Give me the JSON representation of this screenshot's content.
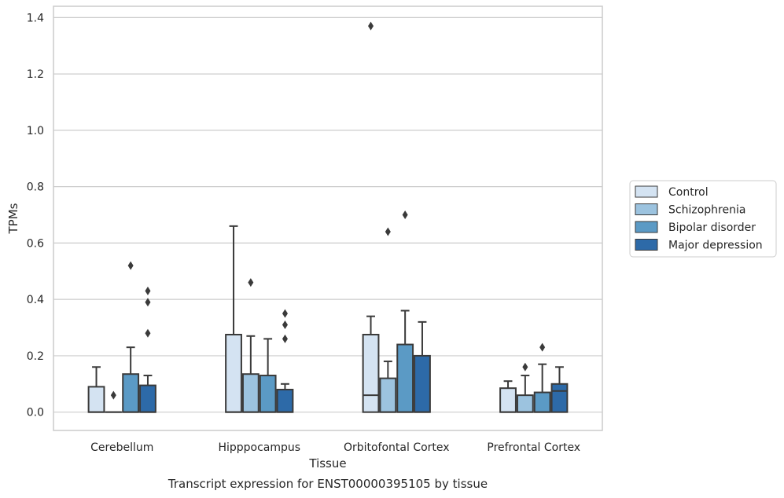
{
  "chart_data": {
    "type": "boxplot",
    "title": "Transcript expression for ENST00000395105 by tissue",
    "xlabel": "Tissue",
    "ylabel": "TPMs",
    "ylim": [
      -0.065,
      1.44
    ],
    "yticks": [
      "0.0",
      "0.2",
      "0.4",
      "0.6",
      "0.8",
      "1.0",
      "1.2",
      "1.4"
    ],
    "grid": "horizontal",
    "legend_position": "right",
    "categories": [
      "Cerebellum",
      "Hipppocampus",
      "Orbitofontal Cortex",
      "Prefrontal Cortex"
    ],
    "series": [
      {
        "name": "Control",
        "color": "#d4e3f2",
        "boxes": [
          {
            "q1": 0.0,
            "median": 0.0,
            "q3": 0.09,
            "whisker_low": 0.0,
            "whisker_high": 0.16,
            "outliers": []
          },
          {
            "q1": 0.0,
            "median": 0.0,
            "q3": 0.275,
            "whisker_low": 0.0,
            "whisker_high": 0.66,
            "outliers": []
          },
          {
            "q1": 0.0,
            "median": 0.06,
            "q3": 0.275,
            "whisker_low": 0.0,
            "whisker_high": 0.34,
            "outliers": [
              1.37
            ]
          },
          {
            "q1": 0.0,
            "median": 0.0,
            "q3": 0.085,
            "whisker_low": 0.0,
            "whisker_high": 0.11,
            "outliers": []
          }
        ]
      },
      {
        "name": "Schizophrenia",
        "color": "#9cc3df",
        "boxes": [
          {
            "q1": 0.0,
            "median": 0.0,
            "q3": 0.0,
            "whisker_low": 0.0,
            "whisker_high": 0.0,
            "outliers": [
              0.06
            ]
          },
          {
            "q1": 0.0,
            "median": 0.0,
            "q3": 0.135,
            "whisker_low": 0.0,
            "whisker_high": 0.27,
            "outliers": [
              0.46
            ]
          },
          {
            "q1": 0.0,
            "median": 0.0,
            "q3": 0.12,
            "whisker_low": 0.0,
            "whisker_high": 0.18,
            "outliers": [
              0.64
            ]
          },
          {
            "q1": 0.0,
            "median": 0.0,
            "q3": 0.06,
            "whisker_low": 0.0,
            "whisker_high": 0.13,
            "outliers": [
              0.16
            ]
          }
        ]
      },
      {
        "name": "Bipolar disorder",
        "color": "#5b9ac5",
        "boxes": [
          {
            "q1": 0.0,
            "median": 0.0,
            "q3": 0.135,
            "whisker_low": 0.0,
            "whisker_high": 0.23,
            "outliers": [
              0.52
            ]
          },
          {
            "q1": 0.0,
            "median": 0.0,
            "q3": 0.13,
            "whisker_low": 0.0,
            "whisker_high": 0.26,
            "outliers": []
          },
          {
            "q1": 0.0,
            "median": 0.0,
            "q3": 0.24,
            "whisker_low": 0.0,
            "whisker_high": 0.36,
            "outliers": [
              0.7
            ]
          },
          {
            "q1": 0.0,
            "median": 0.0,
            "q3": 0.07,
            "whisker_low": 0.0,
            "whisker_high": 0.17,
            "outliers": [
              0.23
            ]
          }
        ]
      },
      {
        "name": "Major depression",
        "color": "#2d6aa8",
        "boxes": [
          {
            "q1": 0.0,
            "median": 0.0,
            "q3": 0.095,
            "whisker_low": 0.0,
            "whisker_high": 0.13,
            "outliers": [
              0.28,
              0.39,
              0.43
            ]
          },
          {
            "q1": 0.0,
            "median": 0.0,
            "q3": 0.08,
            "whisker_low": 0.0,
            "whisker_high": 0.1,
            "outliers": [
              0.26,
              0.31,
              0.35
            ]
          },
          {
            "q1": 0.0,
            "median": 0.0,
            "q3": 0.2,
            "whisker_low": 0.0,
            "whisker_high": 0.32,
            "outliers": []
          },
          {
            "q1": 0.0,
            "median": 0.075,
            "q3": 0.1,
            "whisker_low": 0.0,
            "whisker_high": 0.16,
            "outliers": []
          }
        ]
      }
    ]
  }
}
